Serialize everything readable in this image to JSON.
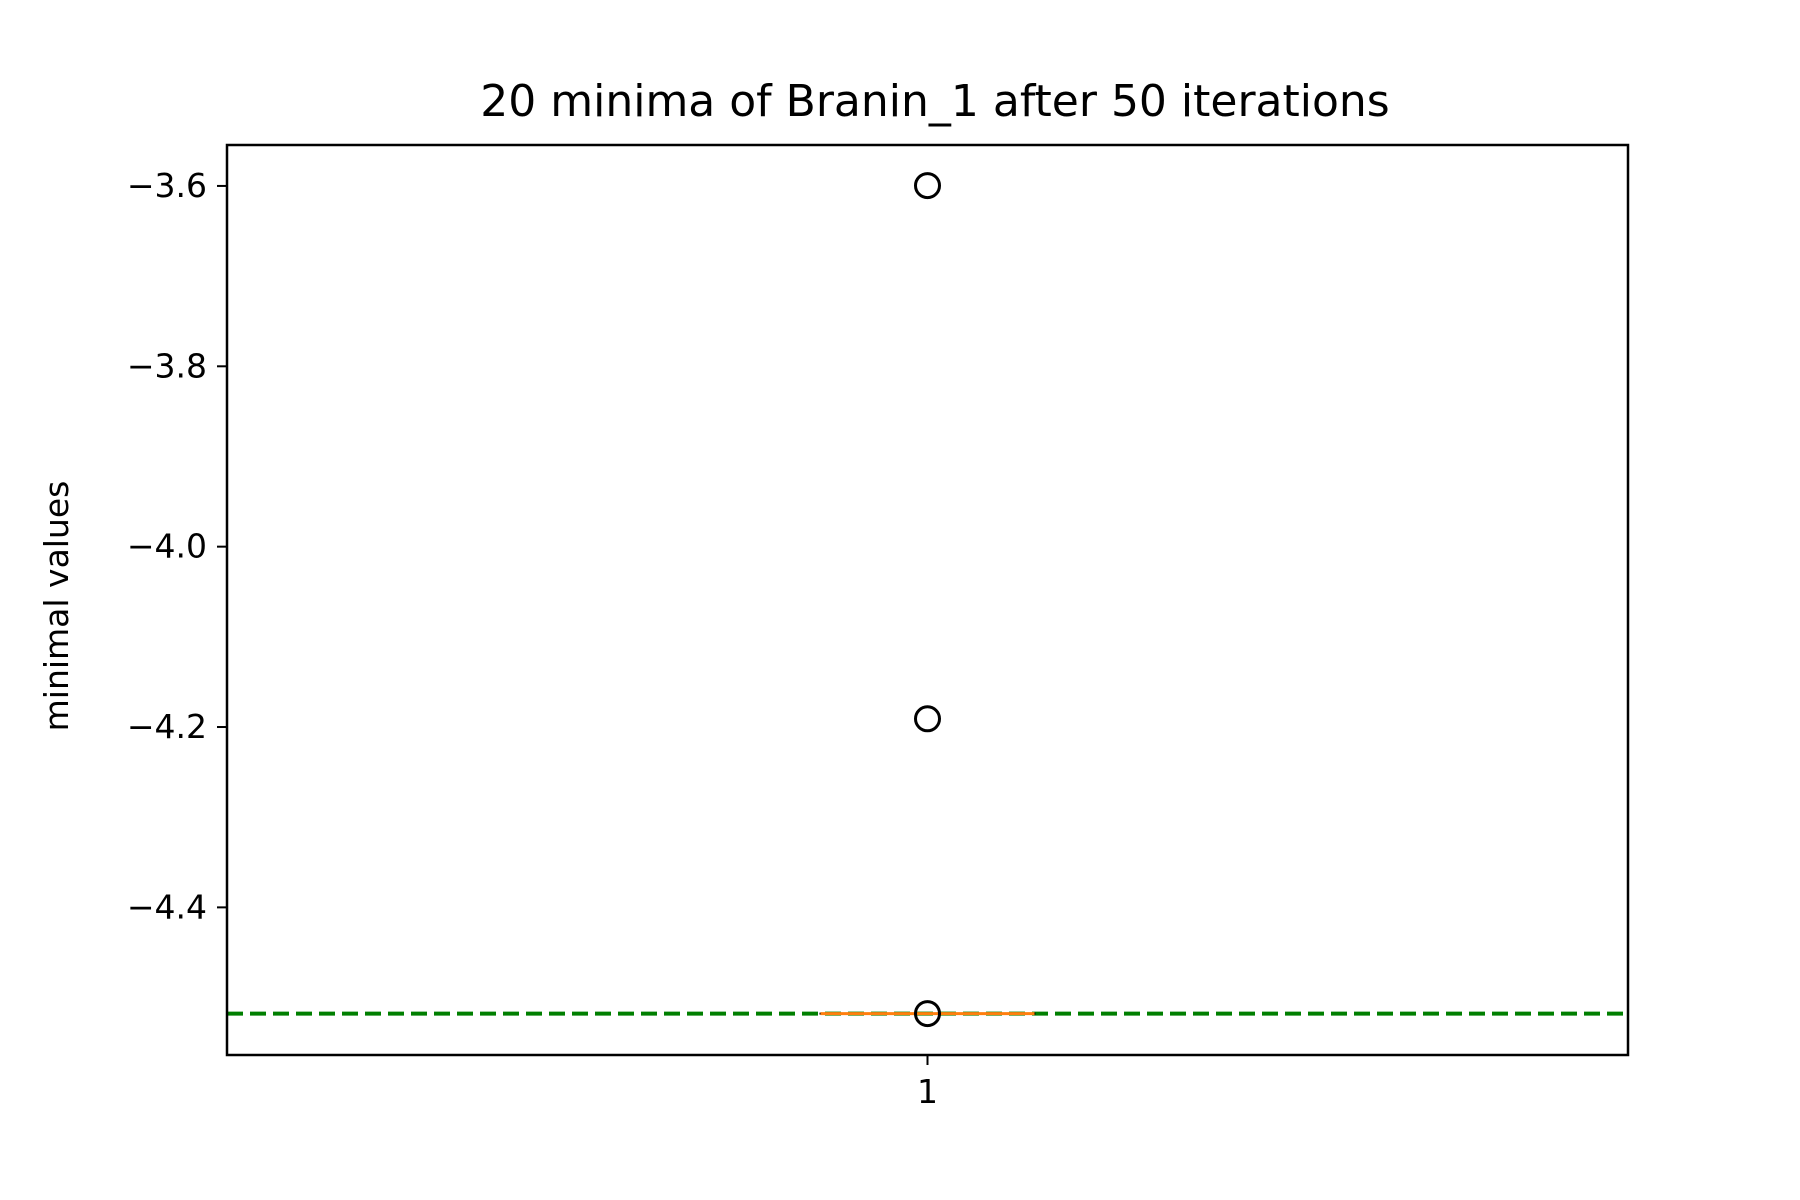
{
  "chart_data": {
    "type": "box",
    "title": "20 minima of Branin_1 after 50 iterations",
    "xlabel": "",
    "ylabel": "minimal values",
    "categories": [
      "1"
    ],
    "ylim": [
      -4.5637,
      -3.5546
    ],
    "yticks": [
      -3.6,
      -3.8,
      -4.0,
      -4.2,
      -4.4
    ],
    "ytick_labels": [
      "−3.6",
      "−3.8",
      "−4.0",
      "−4.2",
      "−4.4"
    ],
    "box": {
      "median": -4.5178,
      "q1": -4.5178,
      "q3": -4.5178,
      "whisker_low": -4.5178,
      "whisker_high": -4.5178,
      "outliers": [
        -3.5996,
        -4.1909,
        -4.5178
      ]
    },
    "reference_line": {
      "value": -4.5178,
      "style": "dashed"
    },
    "colors": {
      "median": "#ff7f0e",
      "reference_line": "#007f00",
      "axes": "#000000",
      "outlier_edge": "#000000"
    },
    "grid": false,
    "legend": "none"
  }
}
